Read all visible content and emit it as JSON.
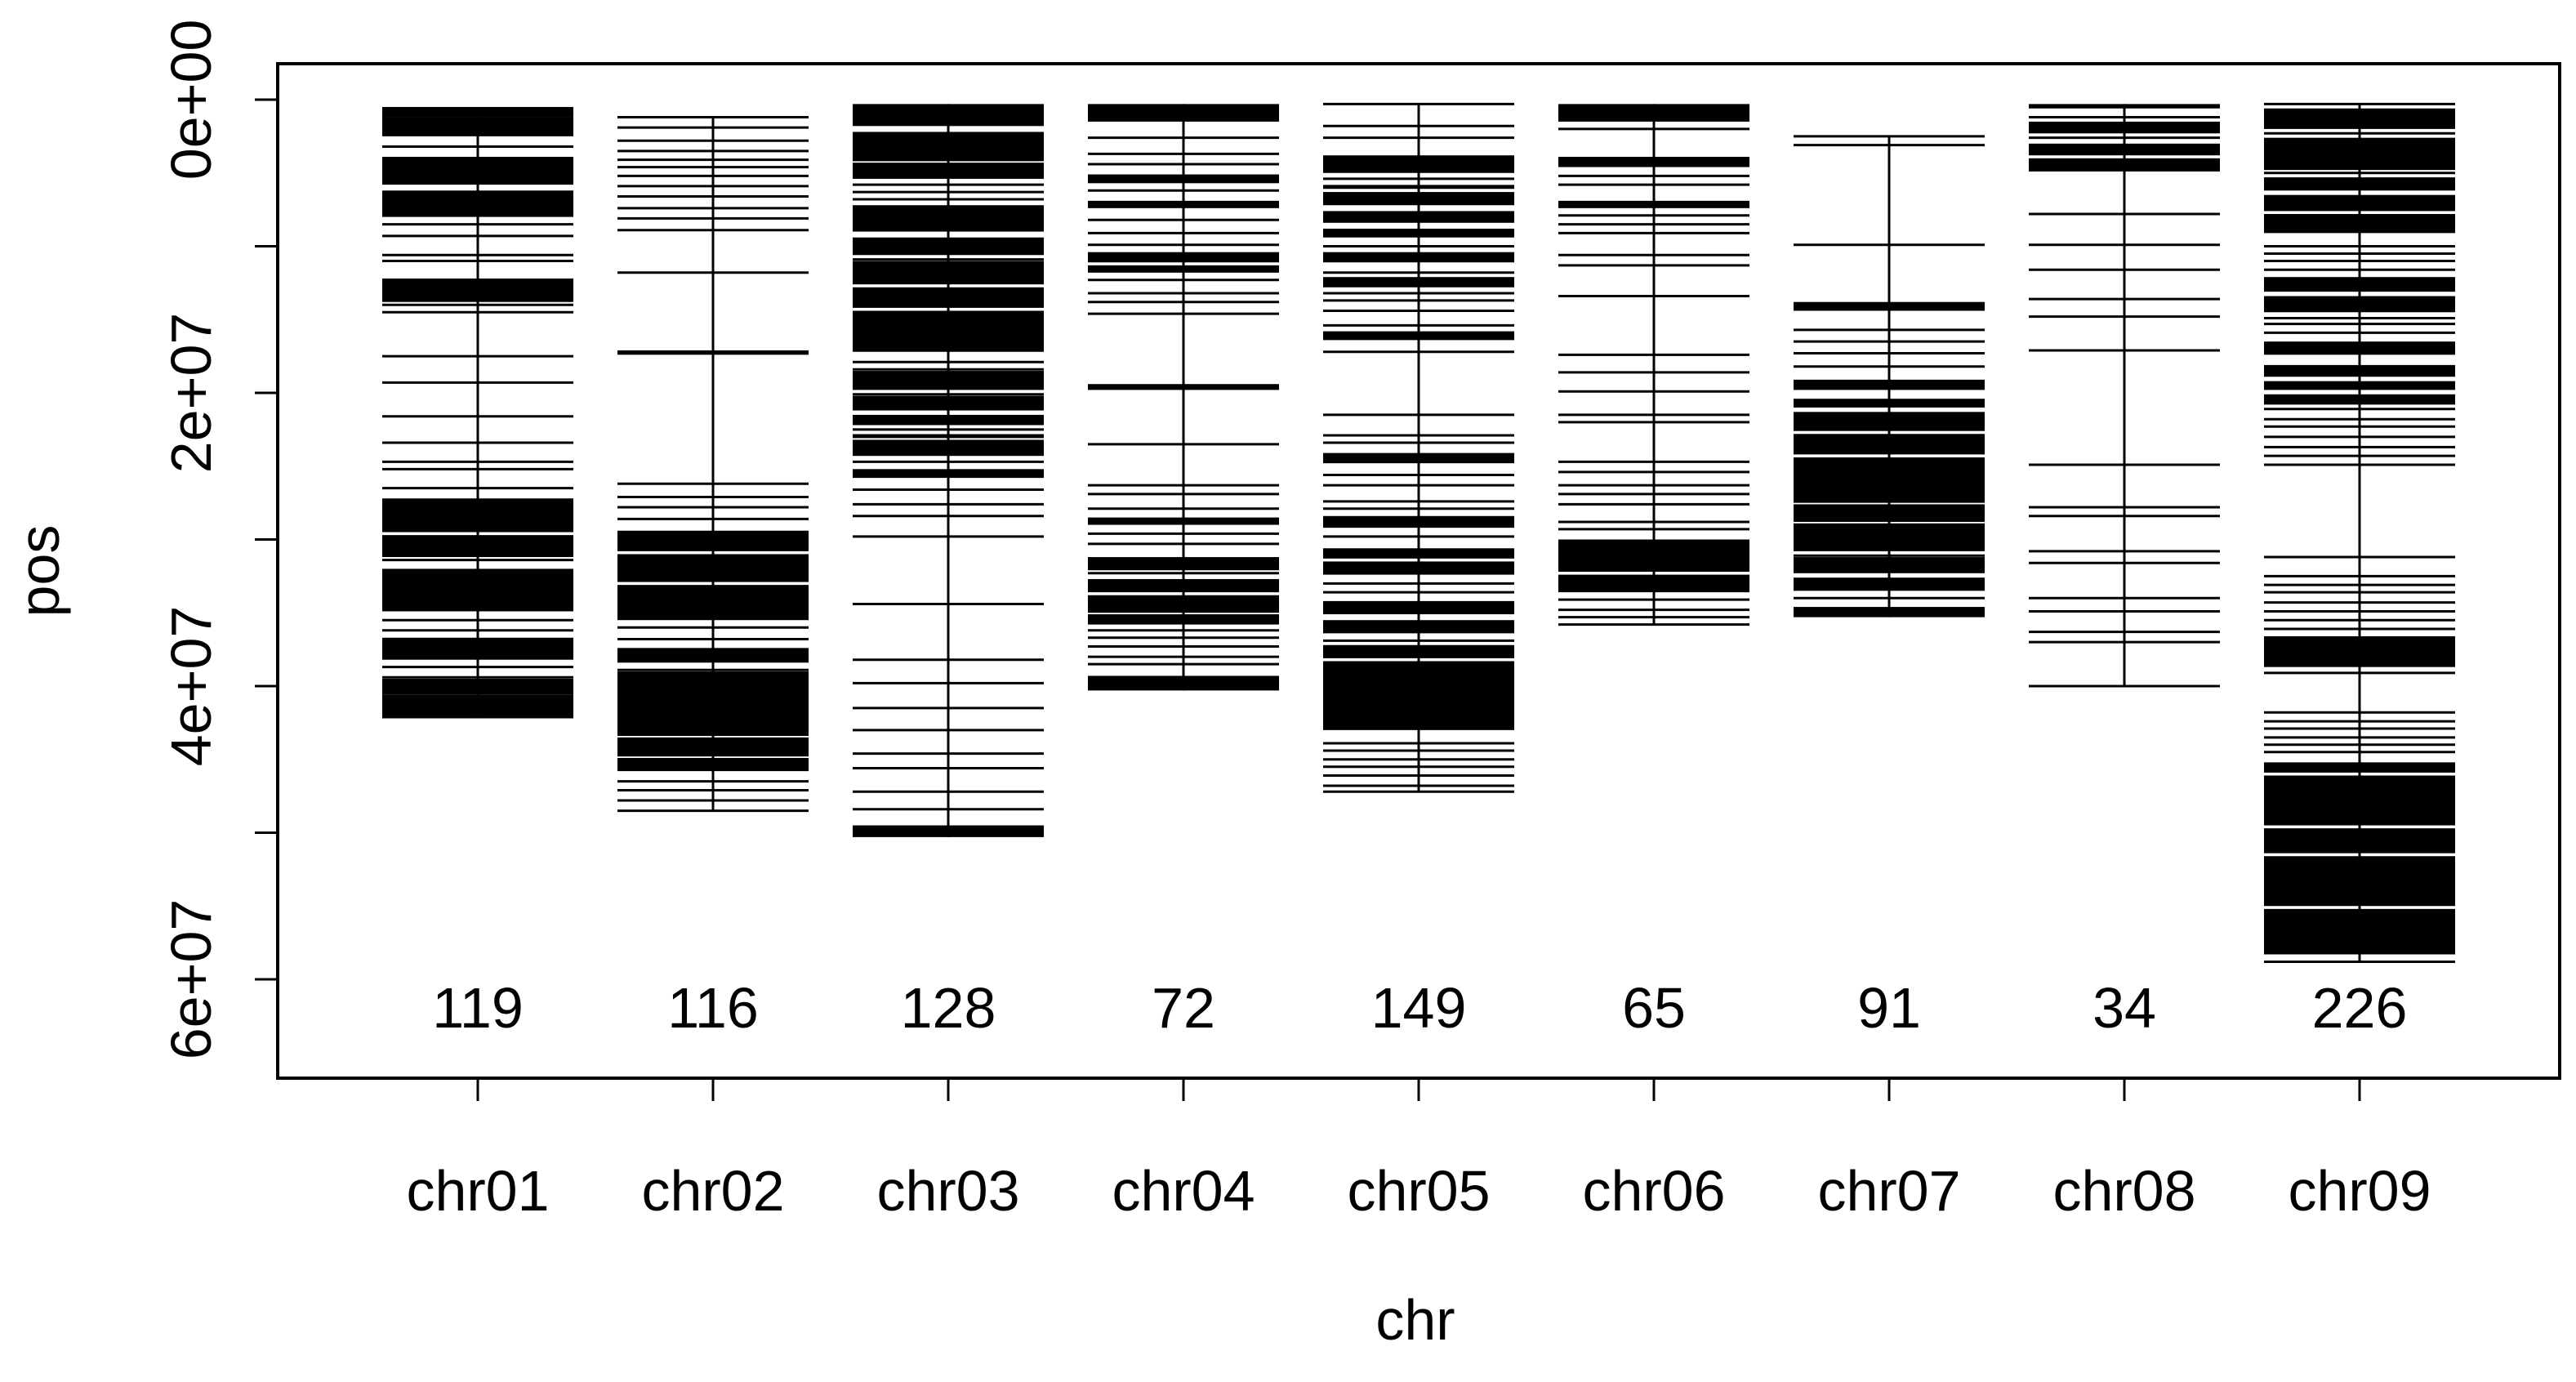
{
  "chart_data": {
    "type": "marker-strip",
    "xlabel": "chr",
    "ylabel": "pos",
    "y_axis_reversed": true,
    "ylim": [
      0,
      67000000.0
    ],
    "y_ticks": [
      {
        "value": 0,
        "label": "0e+00"
      },
      {
        "value": 10000000.0,
        "label": ""
      },
      {
        "value": 20000000.0,
        "label": "2e+07"
      },
      {
        "value": 30000000.0,
        "label": ""
      },
      {
        "value": 40000000.0,
        "label": "4e+07"
      },
      {
        "value": 50000000.0,
        "label": ""
      },
      {
        "value": 60000000.0,
        "label": "6e+07"
      }
    ],
    "categories": [
      "chr01",
      "chr02",
      "chr03",
      "chr04",
      "chr05",
      "chr06",
      "chr07",
      "chr08",
      "chr09"
    ],
    "counts": [
      "119",
      "116",
      "128",
      "72",
      "149",
      "65",
      "91",
      "34",
      "226"
    ],
    "series": [
      {
        "chr": "chr01",
        "range": [
          500000.0,
          42200000.0
        ],
        "bands": [
          [
            500000.0,
            1200000.0
          ],
          [
            1200000.0,
            2500000.0
          ],
          [
            3900000.0,
            5800000.0
          ],
          [
            6200000.0,
            8000000.0
          ],
          [
            12200000.0,
            13800000.0
          ],
          [
            27200000.0,
            29500000.0
          ],
          [
            29700000.0,
            31200000.0
          ],
          [
            32000000.0,
            34900000.0
          ],
          [
            36700000.0,
            38200000.0
          ],
          [
            39500000.0,
            40600000.0
          ],
          [
            40600000.0,
            42200000.0
          ]
        ],
        "lines": [
          3200000.0,
          4800000.0,
          6300000.0,
          7000000.0,
          7600000.0,
          8500000.0,
          9300000.0,
          10600000.0,
          11000000.0,
          12800000.0,
          13700000.0,
          14000000.0,
          14500000.0,
          17500000.0,
          19300000.0,
          21600000.0,
          23400000.0,
          24700000.0,
          25200000.0,
          26500000.0,
          28600000.0,
          30100000.0,
          31400000.0,
          32800000.0,
          35500000.0,
          36200000.0,
          38700000.0,
          39400000.0
        ]
      },
      {
        "chr": "chr02",
        "range": [
          1200000.0,
          48500000.0
        ],
        "bands": [
          [
            17100000.0,
            17400000.0
          ],
          [
            29400000.0,
            30800000.0
          ],
          [
            31000000.0,
            32900000.0
          ],
          [
            33100000.0,
            35500000.0
          ],
          [
            37400000.0,
            38400000.0
          ],
          [
            39000000.0,
            43400000.0
          ],
          [
            43500000.0,
            44800000.0
          ],
          [
            44900000.0,
            45800000.0
          ]
        ],
        "lines": [
          1200000.0,
          1900000.0,
          2800000.0,
          3500000.0,
          4100000.0,
          4600000.0,
          5200000.0,
          5900000.0,
          6600000.0,
          7400000.0,
          8100000.0,
          8900000.0,
          11800000.0,
          26200000.0,
          27100000.0,
          27800000.0,
          28600000.0,
          32000000.0,
          34300000.0,
          36000000.0,
          36800000.0,
          38900000.0,
          43900000.0,
          46500000.0,
          47100000.0,
          47800000.0,
          48500000.0
        ]
      },
      {
        "chr": "chr03",
        "range": [
          300000.0,
          50300000.0
        ],
        "bands": [
          [
            300000.0,
            1800000.0
          ],
          [
            2200000.0,
            4200000.0
          ],
          [
            4300000.0,
            5400000.0
          ],
          [
            7200000.0,
            9000000.0
          ],
          [
            9400000.0,
            10600000.0
          ],
          [
            11000000.0,
            12600000.0
          ],
          [
            12800000.0,
            14200000.0
          ],
          [
            14400000.0,
            17200000.0
          ],
          [
            18500000.0,
            19800000.0
          ],
          [
            20200000.0,
            21200000.0
          ],
          [
            21500000.0,
            22200000.0
          ],
          [
            23200000.0,
            24300000.0
          ],
          [
            25200000.0,
            25800000.0
          ],
          [
            49500000.0,
            50300000.0
          ]
        ],
        "lines": [
          5800000.0,
          6300000.0,
          6800000.0,
          10900000.0,
          15200000.0,
          17900000.0,
          18400000.0,
          20100000.0,
          22500000.0,
          22900000.0,
          23000000.0,
          24700000.0,
          26600000.0,
          27600000.0,
          28400000.0,
          29800000.0,
          34400000.0,
          38200000.0,
          39800000.0,
          41500000.0,
          43000000.0,
          44600000.0,
          45600000.0,
          47200000.0,
          48400000.0
        ]
      },
      {
        "chr": "chr04",
        "range": [
          300000.0,
          40300000.0
        ],
        "bands": [
          [
            300000.0,
            1500000.0
          ],
          [
            5100000.0,
            5700000.0
          ],
          [
            6900000.0,
            7400000.0
          ],
          [
            10400000.0,
            11100000.0
          ],
          [
            11300000.0,
            11800000.0
          ],
          [
            19400000.0,
            19800000.0
          ],
          [
            28500000.0,
            29000000.0
          ],
          [
            31200000.0,
            32100000.0
          ],
          [
            32700000.0,
            33600000.0
          ],
          [
            33800000.0,
            35000000.0
          ],
          [
            35100000.0,
            35800000.0
          ],
          [
            39300000.0,
            40300000.0
          ]
        ],
        "lines": [
          2600000.0,
          3700000.0,
          4400000.0,
          6200000.0,
          8200000.0,
          9100000.0,
          9900000.0,
          12300000.0,
          13200000.0,
          13800000.0,
          14600000.0,
          23500000.0,
          26300000.0,
          26900000.0,
          27900000.0,
          29600000.0,
          30300000.0,
          32300000.0,
          36200000.0,
          36700000.0,
          37300000.0,
          38000000.0,
          38500000.0
        ]
      },
      {
        "chr": "chr05",
        "range": [
          300000.0,
          47200000.0
        ],
        "bands": [
          [
            3800000.0,
            5000000.0
          ],
          [
            6300000.0,
            7200000.0
          ],
          [
            7600000.0,
            8400000.0
          ],
          [
            8800000.0,
            9400000.0
          ],
          [
            10400000.0,
            11100000.0
          ],
          [
            12100000.0,
            12800000.0
          ],
          [
            15800000.0,
            16400000.0
          ],
          [
            24100000.0,
            24800000.0
          ],
          [
            28400000.0,
            29200000.0
          ],
          [
            30600000.0,
            31300000.0
          ],
          [
            31500000.0,
            32400000.0
          ],
          [
            34200000.0,
            35100000.0
          ],
          [
            35500000.0,
            36400000.0
          ],
          [
            37200000.0,
            38100000.0
          ],
          [
            38300000.0,
            43000000.0
          ]
        ],
        "lines": [
          300000.0,
          1800000.0,
          2600000.0,
          5400000.0,
          5900000.0,
          6000000.0,
          10000000.0,
          11800000.0,
          13200000.0,
          13700000.0,
          14400000.0,
          15400000.0,
          17200000.0,
          21500000.0,
          22900000.0,
          23400000.0,
          25600000.0,
          26300000.0,
          27400000.0,
          27900000.0,
          29800000.0,
          33000000.0,
          33600000.0,
          36900000.0,
          43900000.0,
          44400000.0,
          45000000.0,
          45500000.0,
          46100000.0,
          46800000.0,
          47200000.0
        ]
      },
      {
        "chr": "chr06",
        "range": [
          300000.0,
          35800000.0
        ],
        "bands": [
          [
            300000.0,
            1500000.0
          ],
          [
            3900000.0,
            4600000.0
          ],
          [
            6900000.0,
            7400000.0
          ],
          [
            30000000.0,
            32200000.0
          ],
          [
            32400000.0,
            33600000.0
          ]
        ],
        "lines": [
          2000000.0,
          5200000.0,
          5800000.0,
          7900000.0,
          8500000.0,
          9100000.0,
          10600000.0,
          11300000.0,
          13400000.0,
          17400000.0,
          18600000.0,
          19900000.0,
          21500000.0,
          22000000.0,
          24700000.0,
          25400000.0,
          26300000.0,
          26900000.0,
          27600000.0,
          28800000.0,
          29300000.0,
          34100000.0,
          34800000.0,
          35300000.0,
          35800000.0
        ]
      },
      {
        "chr": "chr07",
        "range": [
          2500000.0,
          35300000.0
        ],
        "bands": [
          [
            13800000.0,
            14400000.0
          ],
          [
            19100000.0,
            19800000.0
          ],
          [
            20400000.0,
            21000000.0
          ],
          [
            21300000.0,
            22600000.0
          ],
          [
            22800000.0,
            24200000.0
          ],
          [
            24400000.0,
            27500000.0
          ],
          [
            27600000.0,
            28800000.0
          ],
          [
            28900000.0,
            30800000.0
          ],
          [
            31200000.0,
            32300000.0
          ],
          [
            32600000.0,
            33500000.0
          ],
          [
            34600000.0,
            35300000.0
          ]
        ],
        "lines": [
          2500000.0,
          3100000.0,
          9900000.0,
          15700000.0,
          16500000.0,
          17300000.0,
          18200000.0,
          31100000.0,
          34000000.0
        ]
      },
      {
        "chr": "chr08",
        "range": [
          300000.0,
          40000000.0
        ],
        "bands": [
          [
            300000.0,
            600000.0
          ],
          [
            1500000.0,
            2300000.0
          ],
          [
            3000000.0,
            3800000.0
          ],
          [
            4000000.0,
            4900000.0
          ]
        ],
        "lines": [
          1200000.0,
          2600000.0,
          7800000.0,
          9900000.0,
          11600000.0,
          13600000.0,
          14800000.0,
          17100000.0,
          24900000.0,
          27800000.0,
          28400000.0,
          30800000.0,
          31600000.0,
          34000000.0,
          34900000.0,
          36300000.0,
          37000000.0,
          40000000.0
        ]
      },
      {
        "chr": "chr09",
        "range": [
          300000.0,
          58800000.0
        ],
        "bands": [
          [
            600000.0,
            2000000.0
          ],
          [
            2600000.0,
            4800000.0
          ],
          [
            5300000.0,
            6200000.0
          ],
          [
            6500000.0,
            7600000.0
          ],
          [
            7800000.0,
            9100000.0
          ],
          [
            12100000.0,
            13100000.0
          ],
          [
            13400000.0,
            14500000.0
          ],
          [
            16500000.0,
            17400000.0
          ],
          [
            18100000.0,
            18900000.0
          ],
          [
            19200000.0,
            19800000.0
          ],
          [
            20100000.0,
            20800000.0
          ],
          [
            36600000.0,
            38700000.0
          ],
          [
            45200000.0,
            45900000.0
          ],
          [
            46100000.0,
            49500000.0
          ],
          [
            49700000.0,
            51400000.0
          ],
          [
            51600000.0,
            55000000.0
          ],
          [
            55200000.0,
            58300000.0
          ]
        ],
        "lines": [
          300000.0,
          2300000.0,
          5000000.0,
          7200000.0,
          10000000.0,
          10500000.0,
          11000000.0,
          11600000.0,
          14900000.0,
          15300000.0,
          15900000.0,
          19600000.0,
          21100000.0,
          21800000.0,
          22300000.0,
          23000000.0,
          23700000.0,
          24300000.0,
          24900000.0,
          31200000.0,
          32500000.0,
          33100000.0,
          33600000.0,
          34300000.0,
          34900000.0,
          35500000.0,
          36100000.0,
          39100000.0,
          41800000.0,
          42400000.0,
          42900000.0,
          43500000.0,
          44000000.0,
          44500000.0,
          58800000.0
        ]
      }
    ]
  }
}
